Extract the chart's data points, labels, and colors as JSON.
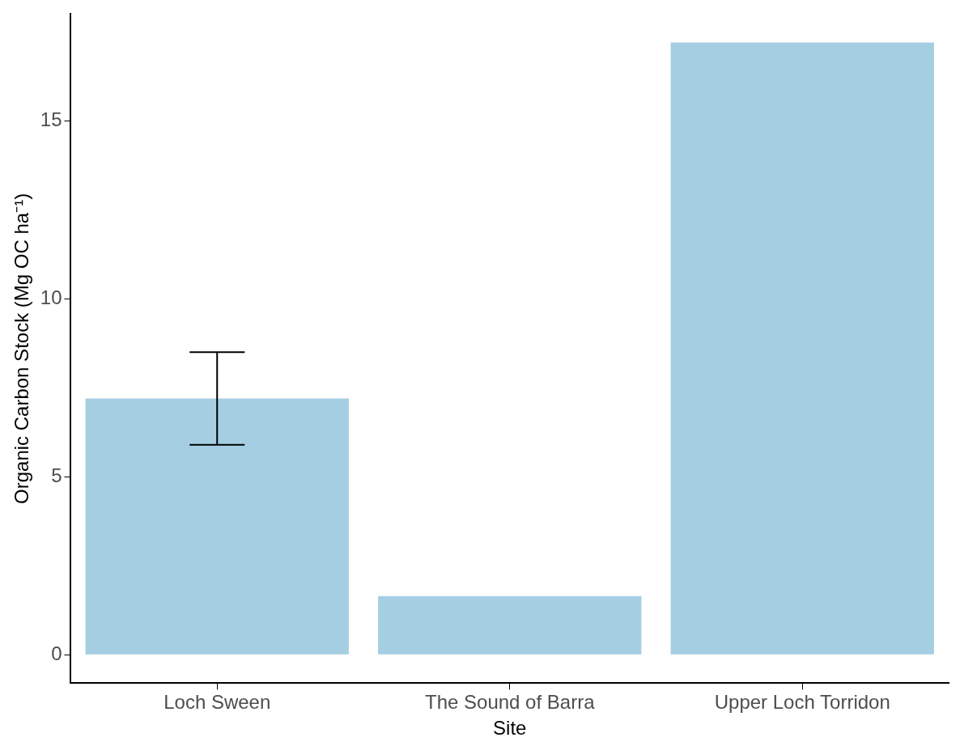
{
  "chart_data": {
    "type": "bar",
    "xlabel": "Site",
    "ylabel": "Organic Carbon Stock (Mg OC ha⁻¹)",
    "categories": [
      "Loch Sween",
      "The Sound of Barra",
      "Upper Loch Torridon"
    ],
    "values": [
      7.2,
      1.65,
      17.2
    ],
    "color": "#a6cee3",
    "errors": [
      [
        5.9,
        8.5
      ],
      null,
      null
    ],
    "ylim": [
      -0.8,
      18
    ],
    "yticks": [
      0,
      5,
      10,
      15
    ],
    "grid": false,
    "legend": false
  }
}
